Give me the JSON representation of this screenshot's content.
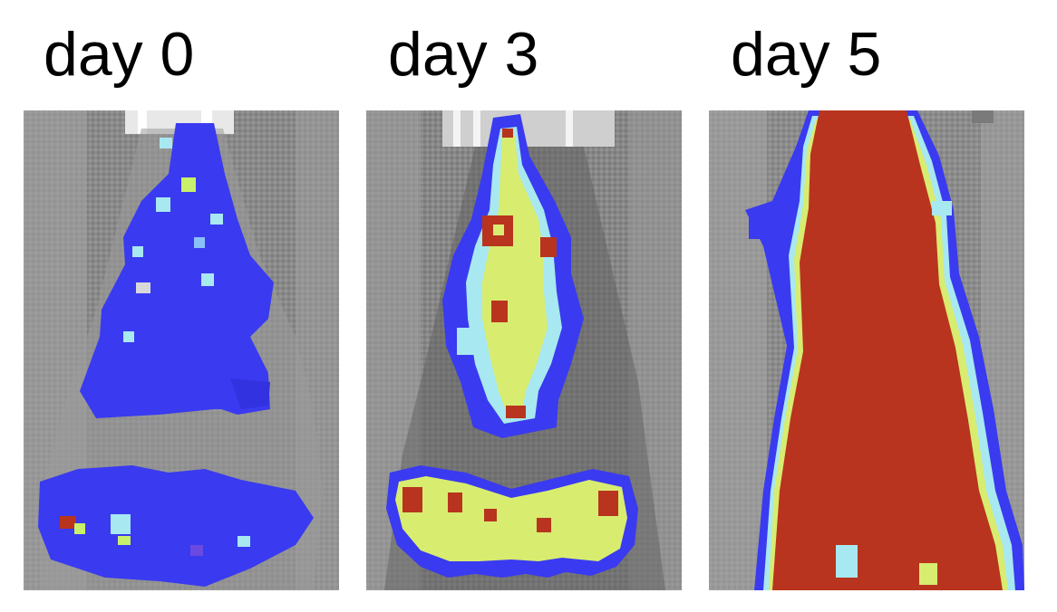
{
  "labels": [
    "day 0",
    "day 3",
    "day 5"
  ],
  "panels": [
    {
      "label": "day 0",
      "description_icon": "mouse-bioluminescence-image"
    },
    {
      "label": "day 3",
      "description_icon": "mouse-bioluminescence-image"
    },
    {
      "label": "day 5",
      "description_icon": "mouse-bioluminescence-image"
    }
  ],
  "colors": {
    "background": "#ffffff",
    "mouse_gray": "#8f8f8f",
    "signal_low": "#3a3af0",
    "signal_mid": "#c8f06a",
    "signal_cyan": "#a8e8f0",
    "signal_high": "#b8341e"
  }
}
